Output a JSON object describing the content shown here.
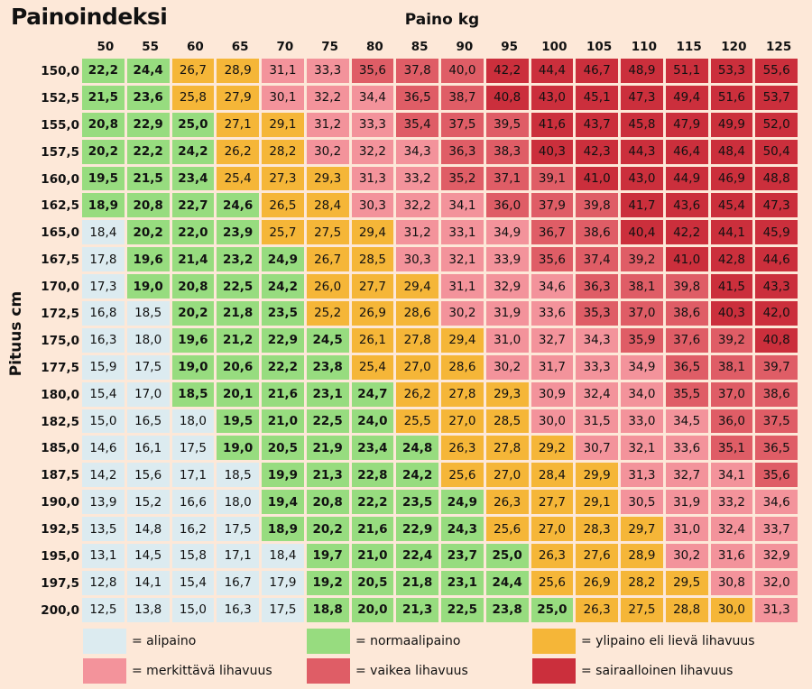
{
  "chart_data": {
    "type": "table",
    "title": "Painoindeksi",
    "xlabel": "Paino kg",
    "ylabel": "Pituus cm",
    "weights": [
      "50",
      "55",
      "60",
      "65",
      "70",
      "75",
      "80",
      "85",
      "90",
      "95",
      "100",
      "105",
      "110",
      "115",
      "120",
      "125"
    ],
    "heights": [
      "150,0",
      "152,5",
      "155,0",
      "157,5",
      "160,0",
      "162,5",
      "165,0",
      "167,5",
      "170,0",
      "172,5",
      "175,0",
      "177,5",
      "180,0",
      "182,5",
      "185,0",
      "187,5",
      "190,0",
      "192,5",
      "195,0",
      "197,5",
      "200,0"
    ],
    "values": [
      [
        "22,2",
        "24,4",
        "26,7",
        "28,9",
        "31,1",
        "33,3",
        "35,6",
        "37,8",
        "40,0",
        "42,2",
        "44,4",
        "46,7",
        "48,9",
        "51,1",
        "53,3",
        "55,6"
      ],
      [
        "21,5",
        "23,6",
        "25,8",
        "27,9",
        "30,1",
        "32,2",
        "34,4",
        "36,5",
        "38,7",
        "40,8",
        "43,0",
        "45,1",
        "47,3",
        "49,4",
        "51,6",
        "53,7"
      ],
      [
        "20,8",
        "22,9",
        "25,0",
        "27,1",
        "29,1",
        "31,2",
        "33,3",
        "35,4",
        "37,5",
        "39,5",
        "41,6",
        "43,7",
        "45,8",
        "47,9",
        "49,9",
        "52,0"
      ],
      [
        "20,2",
        "22,2",
        "24,2",
        "26,2",
        "28,2",
        "30,2",
        "32,2",
        "34,3",
        "36,3",
        "38,3",
        "40,3",
        "42,3",
        "44,3",
        "46,4",
        "48,4",
        "50,4"
      ],
      [
        "19,5",
        "21,5",
        "23,4",
        "25,4",
        "27,3",
        "29,3",
        "31,3",
        "33,2",
        "35,2",
        "37,1",
        "39,1",
        "41,0",
        "43,0",
        "44,9",
        "46,9",
        "48,8"
      ],
      [
        "18,9",
        "20,8",
        "22,7",
        "24,6",
        "26,5",
        "28,4",
        "30,3",
        "32,2",
        "34,1",
        "36,0",
        "37,9",
        "39,8",
        "41,7",
        "43,6",
        "45,4",
        "47,3"
      ],
      [
        "18,4",
        "20,2",
        "22,0",
        "23,9",
        "25,7",
        "27,5",
        "29,4",
        "31,2",
        "33,1",
        "34,9",
        "36,7",
        "38,6",
        "40,4",
        "42,2",
        "44,1",
        "45,9"
      ],
      [
        "17,8",
        "19,6",
        "21,4",
        "23,2",
        "24,9",
        "26,7",
        "28,5",
        "30,3",
        "32,1",
        "33,9",
        "35,6",
        "37,4",
        "39,2",
        "41,0",
        "42,8",
        "44,6"
      ],
      [
        "17,3",
        "19,0",
        "20,8",
        "22,5",
        "24,2",
        "26,0",
        "27,7",
        "29,4",
        "31,1",
        "32,9",
        "34,6",
        "36,3",
        "38,1",
        "39,8",
        "41,5",
        "43,3"
      ],
      [
        "16,8",
        "18,5",
        "20,2",
        "21,8",
        "23,5",
        "25,2",
        "26,9",
        "28,6",
        "30,2",
        "31,9",
        "33,6",
        "35,3",
        "37,0",
        "38,6",
        "40,3",
        "42,0"
      ],
      [
        "16,3",
        "18,0",
        "19,6",
        "21,2",
        "22,9",
        "24,5",
        "26,1",
        "27,8",
        "29,4",
        "31,0",
        "32,7",
        "34,3",
        "35,9",
        "37,6",
        "39,2",
        "40,8"
      ],
      [
        "15,9",
        "17,5",
        "19,0",
        "20,6",
        "22,2",
        "23,8",
        "25,4",
        "27,0",
        "28,6",
        "30,2",
        "31,7",
        "33,3",
        "34,9",
        "36,5",
        "38,1",
        "39,7"
      ],
      [
        "15,4",
        "17,0",
        "18,5",
        "20,1",
        "21,6",
        "23,1",
        "24,7",
        "26,2",
        "27,8",
        "29,3",
        "30,9",
        "32,4",
        "34,0",
        "35,5",
        "37,0",
        "38,6"
      ],
      [
        "15,0",
        "16,5",
        "18,0",
        "19,5",
        "21,0",
        "22,5",
        "24,0",
        "25,5",
        "27,0",
        "28,5",
        "30,0",
        "31,5",
        "33,0",
        "34,5",
        "36,0",
        "37,5"
      ],
      [
        "14,6",
        "16,1",
        "17,5",
        "19,0",
        "20,5",
        "21,9",
        "23,4",
        "24,8",
        "26,3",
        "27,8",
        "29,2",
        "30,7",
        "32,1",
        "33,6",
        "35,1",
        "36,5"
      ],
      [
        "14,2",
        "15,6",
        "17,1",
        "18,5",
        "19,9",
        "21,3",
        "22,8",
        "24,2",
        "25,6",
        "27,0",
        "28,4",
        "29,9",
        "31,3",
        "32,7",
        "34,1",
        "35,6"
      ],
      [
        "13,9",
        "15,2",
        "16,6",
        "18,0",
        "19,4",
        "20,8",
        "22,2",
        "23,5",
        "24,9",
        "26,3",
        "27,7",
        "29,1",
        "30,5",
        "31,9",
        "33,2",
        "34,6"
      ],
      [
        "13,5",
        "14,8",
        "16,2",
        "17,5",
        "18,9",
        "20,2",
        "21,6",
        "22,9",
        "24,3",
        "25,6",
        "27,0",
        "28,3",
        "29,7",
        "31,0",
        "32,4",
        "33,7"
      ],
      [
        "13,1",
        "14,5",
        "15,8",
        "17,1",
        "18,4",
        "19,7",
        "21,0",
        "22,4",
        "23,7",
        "25,0",
        "26,3",
        "27,6",
        "28,9",
        "30,2",
        "31,6",
        "32,9"
      ],
      [
        "12,8",
        "14,1",
        "15,4",
        "16,7",
        "17,9",
        "19,2",
        "20,5",
        "21,8",
        "23,1",
        "24,4",
        "25,6",
        "26,9",
        "28,2",
        "29,5",
        "30,8",
        "32,0"
      ],
      [
        "12,5",
        "13,8",
        "15,0",
        "16,3",
        "17,5",
        "18,8",
        "20,0",
        "21,3",
        "22,5",
        "23,8",
        "25,0",
        "26,3",
        "27,5",
        "28,8",
        "30,0",
        "31,3"
      ]
    ],
    "categories": [
      "1122334445555555",
      "1122333445555555",
      "1112233444555555",
      "1112233344555555",
      "1112223344455555",
      "1111223334445555",
      "0111222333445555",
      "0111122333444555",
      "0111122233344455",
      "0011122233344455",
      "0011112223334445",
      "0011112223333444",
      "0011111222333444",
      "0001111222333344",
      "0001111122233344",
      "0000111122223334",
      "0000111112223333",
      "0000111112222333",
      "0000011111222333",
      "0000011111222233",
      "0000011111122223"
    ],
    "legend": [
      {
        "label": "= alipaino",
        "color": "#dcebf0"
      },
      {
        "label": "= normaalipaino",
        "color": "#97dc7f"
      },
      {
        "label": "= ylipaino eli lievä lihavuus",
        "color": "#f5b638"
      },
      {
        "label": "= merkittävä lihavuus",
        "color": "#f3939b"
      },
      {
        "label": "= vaikea lihavuus",
        "color": "#df5d66"
      },
      {
        "label": "= sairaalloinen lihavuus",
        "color": "#cb2f3c"
      }
    ],
    "bold_category": 1
  }
}
